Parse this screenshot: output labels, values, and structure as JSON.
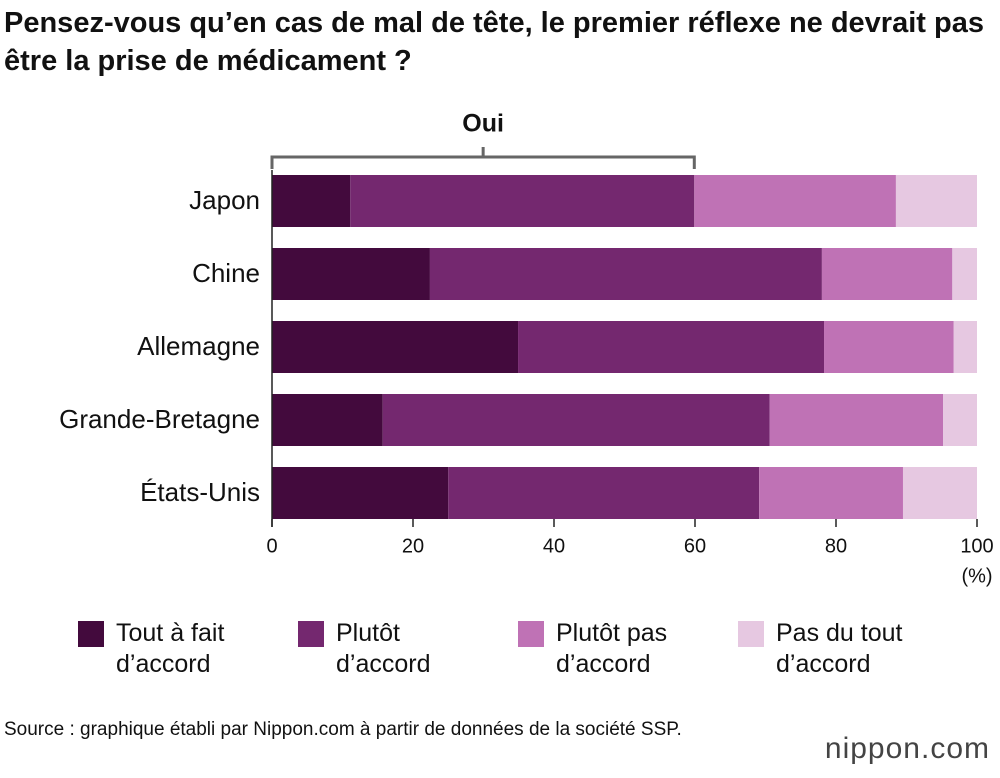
{
  "chart_data": {
    "type": "stacked-bar-horizontal",
    "title": "Pensez-vous qu’en cas de mal de tête, le premier réflexe ne devrait pas être la prise de médicament ?",
    "annotation": "Oui",
    "categories": [
      "Japon",
      "Chine",
      "Allemagne",
      "Grande-Bretagne",
      "États-Unis"
    ],
    "series": [
      {
        "name": "Tout à fait d’accord",
        "color": "#430a3d",
        "values": [
          11.1,
          22.4,
          34.9,
          15.7,
          25.0
        ]
      },
      {
        "name": "Plutôt d’accord",
        "color": "#74286f",
        "values": [
          48.8,
          55.6,
          43.4,
          54.9,
          44.1
        ]
      },
      {
        "name": "Plutôt pas d’accord",
        "color": "#bf72b5",
        "values": [
          28.6,
          18.5,
          18.4,
          24.6,
          20.4
        ]
      },
      {
        "name": "Pas du tout d’accord",
        "color": "#e6c8e1",
        "values": [
          11.5,
          3.5,
          3.3,
          4.8,
          10.5
        ]
      }
    ],
    "xlim": [
      0,
      100
    ],
    "xticks": [
      0,
      20,
      40,
      60,
      80,
      100
    ],
    "x_unit": "(%)",
    "source": "Source : graphique établi par Nippon.com à partir de données de la société SSP.",
    "logo": "nippon.com"
  }
}
